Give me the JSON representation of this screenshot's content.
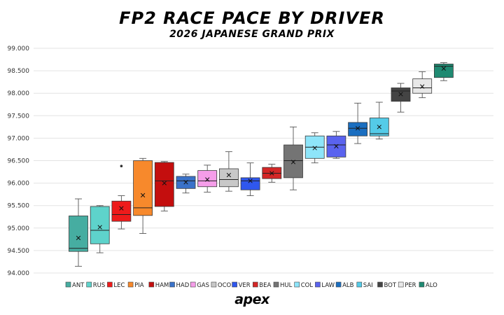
{
  "title": "FP2 RACE PACE BY DRIVER",
  "subtitle": "2026 JAPANESE GRAND PRIX",
  "brand": "apex",
  "chart_data": {
    "type": "box",
    "title": "FP2 RACE PACE BY DRIVER",
    "subtitle": "2026 JAPANESE GRAND PRIX",
    "ylim": [
      94,
      99
    ],
    "y_ticks": [
      "94.000",
      "94.500",
      "95.000",
      "95.500",
      "96.000",
      "96.500",
      "97.000",
      "97.500",
      "98.000",
      "98.500",
      "99.000"
    ],
    "grid": true,
    "legend_position": "bottom",
    "series": [
      {
        "name": "ANT",
        "color": "#46ada1",
        "q1": 94.48,
        "median": 94.55,
        "q3": 95.27,
        "mean": 94.78,
        "min": 94.15,
        "max": 95.65
      },
      {
        "name": "RUS",
        "color": "#5ed3cb",
        "q1": 94.65,
        "median": 94.95,
        "q3": 95.48,
        "mean": 95.02,
        "min": 94.45,
        "max": 95.5
      },
      {
        "name": "LEC",
        "color": "#ee1b1b",
        "q1": 95.15,
        "median": 95.3,
        "q3": 95.6,
        "mean": 95.44,
        "min": 94.98,
        "max": 95.72,
        "outliers": [
          96.38
        ]
      },
      {
        "name": "PIA",
        "color": "#f7892c",
        "q1": 95.28,
        "median": 95.45,
        "q3": 96.5,
        "mean": 95.73,
        "min": 94.88,
        "max": 96.55
      },
      {
        "name": "HAM",
        "color": "#c40e0e",
        "q1": 95.48,
        "median": 96.05,
        "q3": 96.46,
        "mean": 96.0,
        "min": 95.38,
        "max": 96.48
      },
      {
        "name": "HAD",
        "color": "#3a72c9",
        "q1": 95.88,
        "median": 96.05,
        "q3": 96.15,
        "mean": 96.02,
        "min": 95.78,
        "max": 96.2
      },
      {
        "name": "GAS",
        "color": "#f59de9",
        "q1": 95.92,
        "median": 96.05,
        "q3": 96.28,
        "mean": 96.08,
        "min": 95.8,
        "max": 96.4
      },
      {
        "name": "OCO",
        "color": "#c8c8c8",
        "q1": 95.92,
        "median": 96.08,
        "q3": 96.32,
        "mean": 96.18,
        "min": 95.82,
        "max": 96.7
      },
      {
        "name": "VER",
        "color": "#2f57ee",
        "q1": 95.85,
        "median": 96.05,
        "q3": 96.12,
        "mean": 96.05,
        "min": 95.72,
        "max": 96.45
      },
      {
        "name": "BEA",
        "color": "#d42727",
        "q1": 96.1,
        "median": 96.22,
        "q3": 96.35,
        "mean": 96.22,
        "min": 96.02,
        "max": 96.42
      },
      {
        "name": "HUL",
        "color": "#747474",
        "q1": 96.12,
        "median": 96.5,
        "q3": 96.85,
        "mean": 96.47,
        "min": 95.85,
        "max": 97.25
      },
      {
        "name": "COL",
        "color": "#8ee5fa",
        "q1": 96.55,
        "median": 96.8,
        "q3": 97.05,
        "mean": 96.78,
        "min": 96.45,
        "max": 97.12
      },
      {
        "name": "LAW",
        "color": "#5a63ef",
        "q1": 96.58,
        "median": 96.85,
        "q3": 97.05,
        "mean": 96.82,
        "min": 96.55,
        "max": 97.15
      },
      {
        "name": "ALB",
        "color": "#1a6ec0",
        "q1": 97.05,
        "median": 97.22,
        "q3": 97.35,
        "mean": 97.22,
        "min": 96.88,
        "max": 97.78
      },
      {
        "name": "SAI",
        "color": "#54cbe8",
        "q1": 97.05,
        "median": 97.1,
        "q3": 97.45,
        "mean": 97.25,
        "min": 96.98,
        "max": 97.8
      },
      {
        "name": "BOT",
        "color": "#444444",
        "q1": 97.82,
        "median": 98.05,
        "q3": 98.12,
        "mean": 97.98,
        "min": 97.58,
        "max": 98.22
      },
      {
        "name": "PER",
        "color": "#e8e8e8",
        "q1": 98.0,
        "median": 98.12,
        "q3": 98.32,
        "mean": 98.15,
        "min": 97.9,
        "max": 98.48
      },
      {
        "name": "ALO",
        "color": "#1f8a72",
        "q1": 98.35,
        "median": 98.6,
        "q3": 98.65,
        "mean": 98.55,
        "min": 98.28,
        "max": 98.68
      }
    ]
  }
}
